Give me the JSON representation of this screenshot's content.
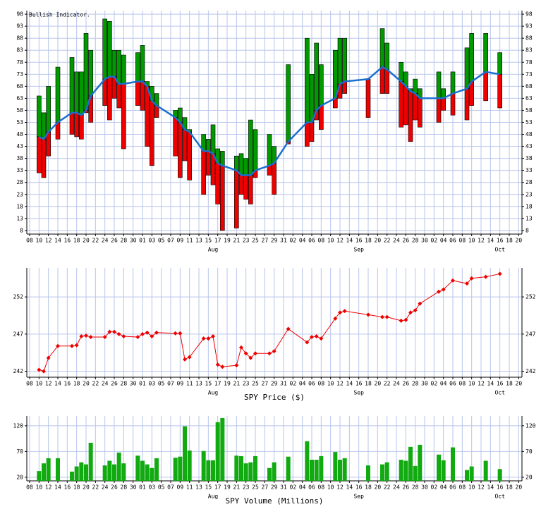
{
  "chart_data": [
    {
      "type": "range_bar",
      "title": "Bullish Indicator.",
      "x": [
        2,
        3,
        4,
        6,
        9,
        10,
        11,
        12,
        13,
        16,
        17,
        18,
        19,
        20,
        23,
        24,
        25,
        26,
        27,
        31,
        32,
        33,
        34,
        37,
        38,
        39,
        40,
        41,
        44,
        45,
        46,
        47,
        48,
        51,
        52,
        55,
        59,
        60,
        61,
        62,
        65,
        66,
        67,
        72,
        75,
        76,
        79,
        80,
        81,
        82,
        83,
        87,
        88,
        90,
        93,
        94,
        97,
        100
      ],
      "high": [
        64,
        57,
        68,
        76,
        80,
        74,
        74,
        90,
        83,
        96,
        95,
        83,
        83,
        81,
        82,
        85,
        70,
        68,
        65,
        58,
        59,
        55,
        50,
        48,
        46,
        52,
        42,
        41,
        39,
        40,
        38,
        54,
        50,
        48,
        43,
        77,
        88,
        73,
        86,
        77,
        83,
        88,
        88,
        71,
        92,
        86,
        78,
        74,
        67,
        71,
        67,
        74,
        67,
        74,
        84,
        90,
        90,
        82
      ],
      "mid": [
        47,
        46,
        49,
        53,
        57,
        57,
        56,
        58,
        64,
        71,
        72,
        72,
        69,
        69,
        70,
        70,
        68,
        62,
        60,
        55,
        53,
        50,
        49,
        41,
        41,
        40,
        36,
        35,
        33,
        31,
        31,
        31,
        33,
        35,
        36,
        45,
        53,
        53,
        58,
        60,
        63,
        69,
        70,
        71,
        76,
        75,
        70,
        68,
        66,
        65,
        63,
        63,
        63,
        65,
        67,
        70,
        74,
        73
      ],
      "low": [
        32,
        30,
        39,
        46,
        48,
        47,
        46,
        57,
        53,
        60,
        54,
        63,
        59,
        42,
        60,
        58,
        43,
        35,
        55,
        39,
        30,
        37,
        29,
        23,
        31,
        27,
        19,
        8,
        9,
        23,
        21,
        19,
        30,
        31,
        23,
        44,
        43,
        45,
        54,
        50,
        59,
        63,
        65,
        55,
        65,
        65,
        51,
        52,
        45,
        54,
        51,
        53,
        58,
        56,
        54,
        60,
        62,
        59
      ],
      "up_color": "#009900",
      "down_color": "#ee0000",
      "line_color": "#1a6fd0",
      "xlim": [
        -0.6,
        104.7
      ],
      "ylim": [
        6.5,
        99.5
      ],
      "yticks": [
        8,
        13,
        18,
        23,
        28,
        33,
        38,
        43,
        48,
        53,
        58,
        63,
        68,
        73,
        78,
        83,
        88,
        93,
        98
      ],
      "xticks": [
        {
          "value": 0,
          "label": "08"
        },
        {
          "value": 2,
          "label": "10"
        },
        {
          "value": 4,
          "label": "12"
        },
        {
          "value": 6,
          "label": "14"
        },
        {
          "value": 8,
          "label": "16"
        },
        {
          "value": 10,
          "label": "18"
        },
        {
          "value": 12,
          "label": "20"
        },
        {
          "value": 14,
          "label": "22"
        },
        {
          "value": 16,
          "label": "24"
        },
        {
          "value": 18,
          "label": "26"
        },
        {
          "value": 20,
          "label": "28"
        },
        {
          "value": 22,
          "label": "30"
        },
        {
          "value": 24,
          "label": "01"
        },
        {
          "value": 26,
          "label": "03"
        },
        {
          "value": 28,
          "label": "05"
        },
        {
          "value": 30,
          "label": "07"
        },
        {
          "value": 32,
          "label": "09"
        },
        {
          "value": 34,
          "label": "11"
        },
        {
          "value": 36,
          "label": "13"
        },
        {
          "value": 38,
          "label": "15"
        },
        {
          "value": 40,
          "label": "17"
        },
        {
          "value": 42,
          "label": "19"
        },
        {
          "value": 44,
          "label": "21"
        },
        {
          "value": 46,
          "label": "23"
        },
        {
          "value": 48,
          "label": "25"
        },
        {
          "value": 50,
          "label": "27"
        },
        {
          "value": 52,
          "label": "29"
        },
        {
          "value": 54,
          "label": "31"
        },
        {
          "value": 56,
          "label": "02"
        },
        {
          "value": 58,
          "label": "04"
        },
        {
          "value": 60,
          "label": "06"
        },
        {
          "value": 62,
          "label": "08"
        },
        {
          "value": 64,
          "label": "10"
        },
        {
          "value": 66,
          "label": "12"
        },
        {
          "value": 68,
          "label": "14"
        },
        {
          "value": 70,
          "label": "16"
        },
        {
          "value": 72,
          "label": "18"
        },
        {
          "value": 74,
          "label": "20"
        },
        {
          "value": 76,
          "label": "22"
        },
        {
          "value": 78,
          "label": "24"
        },
        {
          "value": 80,
          "label": "26"
        },
        {
          "value": 82,
          "label": "28"
        },
        {
          "value": 84,
          "label": "30"
        },
        {
          "value": 86,
          "label": "02"
        },
        {
          "value": 88,
          "label": "04"
        },
        {
          "value": 90,
          "label": "06"
        },
        {
          "value": 92,
          "label": "08"
        },
        {
          "value": 94,
          "label": "10"
        },
        {
          "value": 96,
          "label": "12"
        },
        {
          "value": 98,
          "label": "14"
        },
        {
          "value": 100,
          "label": "16"
        },
        {
          "value": 102,
          "label": "18"
        },
        {
          "value": 104,
          "label": "20"
        }
      ],
      "month_ticks": [
        {
          "value": 39,
          "label": "Aug"
        },
        {
          "value": 70,
          "label": "Sep"
        },
        {
          "value": 100,
          "label": "Oct"
        }
      ],
      "grid": true
    },
    {
      "type": "line",
      "xlabel": "SPY Price ($)",
      "x": [
        2,
        3,
        4,
        6,
        9,
        10,
        11,
        12,
        13,
        16,
        17,
        18,
        19,
        20,
        23,
        24,
        25,
        26,
        27,
        31,
        32,
        33,
        34,
        37,
        38,
        39,
        40,
        41,
        44,
        45,
        46,
        47,
        48,
        51,
        52,
        55,
        59,
        60,
        61,
        62,
        65,
        66,
        67,
        72,
        75,
        76,
        79,
        80,
        81,
        82,
        83,
        87,
        88,
        90,
        93,
        94,
        97,
        100
      ],
      "values": [
        242.2,
        242.0,
        243.8,
        245.4,
        245.4,
        245.5,
        246.7,
        246.8,
        246.6,
        246.6,
        247.3,
        247.3,
        247.0,
        246.7,
        246.6,
        247.0,
        247.2,
        246.7,
        247.2,
        247.1,
        247.1,
        243.6,
        243.9,
        246.4,
        246.4,
        246.7,
        242.9,
        242.6,
        242.8,
        245.2,
        244.4,
        243.8,
        244.4,
        244.4,
        244.7,
        247.7,
        245.9,
        246.6,
        246.7,
        246.4,
        249.1,
        249.9,
        250.1,
        249.6,
        249.3,
        249.3,
        248.8,
        248.9,
        249.9,
        250.2,
        251.1,
        252.7,
        253.0,
        254.2,
        253.8,
        254.5,
        254.7,
        255.1
      ],
      "color": "#ee0000",
      "xlim": [
        -0.6,
        104.7
      ],
      "ylim": [
        241.2,
        255.9
      ],
      "yticks": [
        242,
        247,
        252
      ],
      "xticks": [
        {
          "value": 0,
          "label": "08"
        },
        {
          "value": 2,
          "label": "10"
        },
        {
          "value": 4,
          "label": "12"
        },
        {
          "value": 6,
          "label": "14"
        },
        {
          "value": 8,
          "label": "16"
        },
        {
          "value": 10,
          "label": "18"
        },
        {
          "value": 12,
          "label": "20"
        },
        {
          "value": 14,
          "label": "22"
        },
        {
          "value": 16,
          "label": "24"
        },
        {
          "value": 18,
          "label": "26"
        },
        {
          "value": 20,
          "label": "28"
        },
        {
          "value": 22,
          "label": "30"
        },
        {
          "value": 24,
          "label": "01"
        },
        {
          "value": 26,
          "label": "03"
        },
        {
          "value": 28,
          "label": "05"
        },
        {
          "value": 30,
          "label": "07"
        },
        {
          "value": 32,
          "label": "09"
        },
        {
          "value": 34,
          "label": "11"
        },
        {
          "value": 36,
          "label": "13"
        },
        {
          "value": 38,
          "label": "15"
        },
        {
          "value": 40,
          "label": "17"
        },
        {
          "value": 42,
          "label": "19"
        },
        {
          "value": 44,
          "label": "21"
        },
        {
          "value": 46,
          "label": "23"
        },
        {
          "value": 48,
          "label": "25"
        },
        {
          "value": 50,
          "label": "27"
        },
        {
          "value": 52,
          "label": "29"
        },
        {
          "value": 54,
          "label": "31"
        },
        {
          "value": 56,
          "label": "02"
        },
        {
          "value": 58,
          "label": "04"
        },
        {
          "value": 60,
          "label": "06"
        },
        {
          "value": 62,
          "label": "08"
        },
        {
          "value": 64,
          "label": "10"
        },
        {
          "value": 66,
          "label": "12"
        },
        {
          "value": 68,
          "label": "14"
        },
        {
          "value": 70,
          "label": "16"
        },
        {
          "value": 72,
          "label": "18"
        },
        {
          "value": 74,
          "label": "20"
        },
        {
          "value": 76,
          "label": "22"
        },
        {
          "value": 78,
          "label": "24"
        },
        {
          "value": 80,
          "label": "26"
        },
        {
          "value": 82,
          "label": "28"
        },
        {
          "value": 84,
          "label": "30"
        },
        {
          "value": 86,
          "label": "02"
        },
        {
          "value": 88,
          "label": "04"
        },
        {
          "value": 90,
          "label": "06"
        },
        {
          "value": 92,
          "label": "08"
        },
        {
          "value": 94,
          "label": "10"
        },
        {
          "value": 96,
          "label": "12"
        },
        {
          "value": 98,
          "label": "14"
        },
        {
          "value": 100,
          "label": "16"
        },
        {
          "value": 102,
          "label": "18"
        },
        {
          "value": 104,
          "label": "20"
        }
      ],
      "month_ticks": [
        {
          "value": 39,
          "label": "Aug"
        },
        {
          "value": 70,
          "label": "Sep"
        },
        {
          "value": 100,
          "label": "Oct"
        }
      ],
      "grid": true
    },
    {
      "type": "bar",
      "xlabel": "SPY Volume (Millions)",
      "x": [
        2,
        3,
        4,
        6,
        9,
        10,
        11,
        12,
        13,
        16,
        17,
        18,
        19,
        20,
        23,
        24,
        25,
        26,
        27,
        31,
        32,
        33,
        34,
        37,
        38,
        39,
        40,
        41,
        44,
        45,
        46,
        47,
        48,
        51,
        52,
        55,
        59,
        60,
        61,
        62,
        65,
        66,
        67,
        72,
        75,
        76,
        79,
        80,
        81,
        82,
        83,
        87,
        88,
        90,
        93,
        94,
        97,
        100
      ],
      "values": [
        32,
        47,
        57,
        57,
        31,
        41,
        49,
        45,
        87,
        43,
        52,
        45,
        68,
        47,
        62,
        52,
        45,
        38,
        57,
        58,
        60,
        119,
        72,
        71,
        53,
        53,
        127,
        135,
        62,
        61,
        47,
        49,
        61,
        38,
        49,
        60,
        90,
        54,
        54,
        61,
        69,
        54,
        57,
        43,
        45,
        49,
        54,
        52,
        79,
        42,
        83,
        64,
        53,
        78,
        34,
        41,
        52,
        36
      ],
      "color": "#11aa11",
      "xlim": [
        -0.6,
        104.7
      ],
      "ylim": [
        13,
        139
      ],
      "yticks": [
        20,
        70,
        120
      ],
      "xticks": [
        {
          "value": 0,
          "label": "08"
        },
        {
          "value": 2,
          "label": "10"
        },
        {
          "value": 4,
          "label": "12"
        },
        {
          "value": 6,
          "label": "14"
        },
        {
          "value": 8,
          "label": "16"
        },
        {
          "value": 10,
          "label": "18"
        },
        {
          "value": 12,
          "label": "20"
        },
        {
          "value": 14,
          "label": "22"
        },
        {
          "value": 16,
          "label": "24"
        },
        {
          "value": 18,
          "label": "26"
        },
        {
          "value": 20,
          "label": "28"
        },
        {
          "value": 22,
          "label": "30"
        },
        {
          "value": 24,
          "label": "01"
        },
        {
          "value": 26,
          "label": "03"
        },
        {
          "value": 28,
          "label": "05"
        },
        {
          "value": 30,
          "label": "07"
        },
        {
          "value": 32,
          "label": "09"
        },
        {
          "value": 34,
          "label": "11"
        },
        {
          "value": 36,
          "label": "13"
        },
        {
          "value": 38,
          "label": "15"
        },
        {
          "value": 40,
          "label": "17"
        },
        {
          "value": 42,
          "label": "19"
        },
        {
          "value": 44,
          "label": "21"
        },
        {
          "value": 46,
          "label": "23"
        },
        {
          "value": 48,
          "label": "25"
        },
        {
          "value": 50,
          "label": "27"
        },
        {
          "value": 52,
          "label": "29"
        },
        {
          "value": 54,
          "label": "31"
        },
        {
          "value": 56,
          "label": "02"
        },
        {
          "value": 58,
          "label": "04"
        },
        {
          "value": 60,
          "label": "06"
        },
        {
          "value": 62,
          "label": "08"
        },
        {
          "value": 64,
          "label": "10"
        },
        {
          "value": 66,
          "label": "12"
        },
        {
          "value": 68,
          "label": "14"
        },
        {
          "value": 70,
          "label": "16"
        },
        {
          "value": 72,
          "label": "18"
        },
        {
          "value": 74,
          "label": "20"
        },
        {
          "value": 76,
          "label": "22"
        },
        {
          "value": 78,
          "label": "24"
        },
        {
          "value": 80,
          "label": "26"
        },
        {
          "value": 82,
          "label": "28"
        },
        {
          "value": 84,
          "label": "30"
        },
        {
          "value": 86,
          "label": "02"
        },
        {
          "value": 88,
          "label": "04"
        },
        {
          "value": 90,
          "label": "06"
        },
        {
          "value": 92,
          "label": "08"
        },
        {
          "value": 94,
          "label": "10"
        },
        {
          "value": 96,
          "label": "12"
        },
        {
          "value": 98,
          "label": "14"
        },
        {
          "value": 100,
          "label": "16"
        },
        {
          "value": 102,
          "label": "18"
        },
        {
          "value": 104,
          "label": "20"
        }
      ],
      "month_ticks": [
        {
          "value": 39,
          "label": "Aug"
        },
        {
          "value": 70,
          "label": "Sep"
        },
        {
          "value": 100,
          "label": "Oct"
        }
      ],
      "grid": true
    }
  ]
}
